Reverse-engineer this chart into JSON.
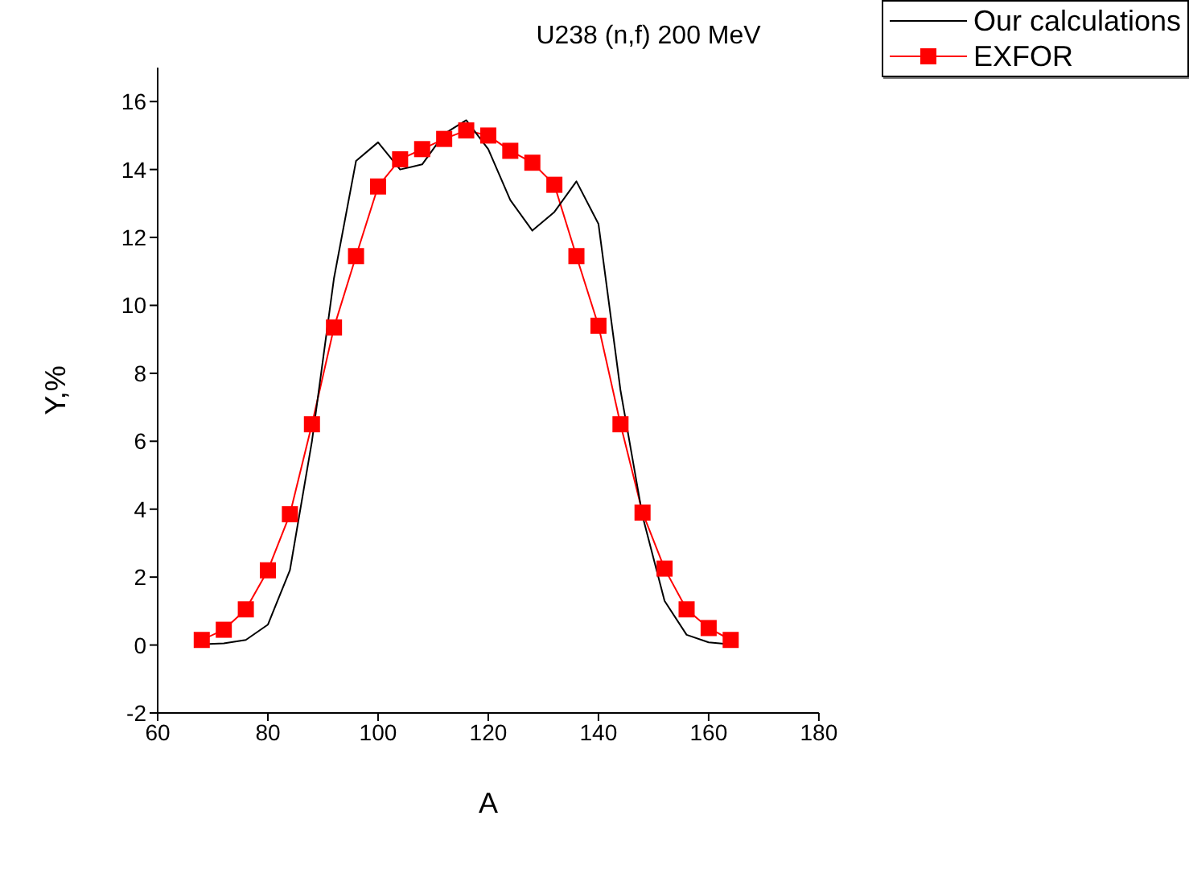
{
  "chart_data": {
    "type": "line",
    "title": "U238 (n,f)  200 MeV",
    "xlabel": "A",
    "ylabel": "Y,%",
    "xlim": [
      60,
      180
    ],
    "xticks": [
      60,
      80,
      100,
      120,
      140,
      160,
      180
    ],
    "ylim": [
      -2,
      17
    ],
    "yticks": [
      -2,
      0,
      2,
      4,
      6,
      8,
      10,
      12,
      14,
      16
    ],
    "legend": "top right",
    "grid": false,
    "series": [
      {
        "name": "Our calculations",
        "color": "#000000",
        "marker": "none",
        "x": [
          68,
          72,
          76,
          80,
          84,
          88,
          92,
          96,
          100,
          104,
          108,
          112,
          116,
          120,
          124,
          128,
          132,
          136,
          140,
          144,
          148,
          152,
          156,
          160,
          164
        ],
        "values": [
          0.02,
          0.05,
          0.15,
          0.6,
          2.2,
          6.0,
          10.8,
          14.25,
          14.8,
          14.0,
          14.15,
          15.05,
          15.45,
          14.6,
          13.1,
          12.2,
          12.75,
          13.65,
          12.4,
          7.5,
          3.8,
          1.3,
          0.3,
          0.08,
          0.02
        ]
      },
      {
        "name": "EXFOR",
        "color": "#ff0000",
        "marker": "square",
        "x": [
          68,
          72,
          76,
          80,
          84,
          88,
          92,
          96,
          100,
          104,
          108,
          112,
          116,
          120,
          124,
          128,
          132,
          136,
          140,
          144,
          148,
          152,
          156,
          160,
          164
        ],
        "values": [
          0.15,
          0.45,
          1.05,
          2.2,
          3.85,
          6.5,
          9.35,
          11.45,
          13.5,
          14.3,
          14.6,
          14.9,
          15.15,
          15.0,
          14.55,
          14.2,
          13.55,
          11.45,
          9.4,
          6.5,
          3.9,
          2.25,
          1.05,
          0.5,
          0.15
        ]
      }
    ]
  }
}
